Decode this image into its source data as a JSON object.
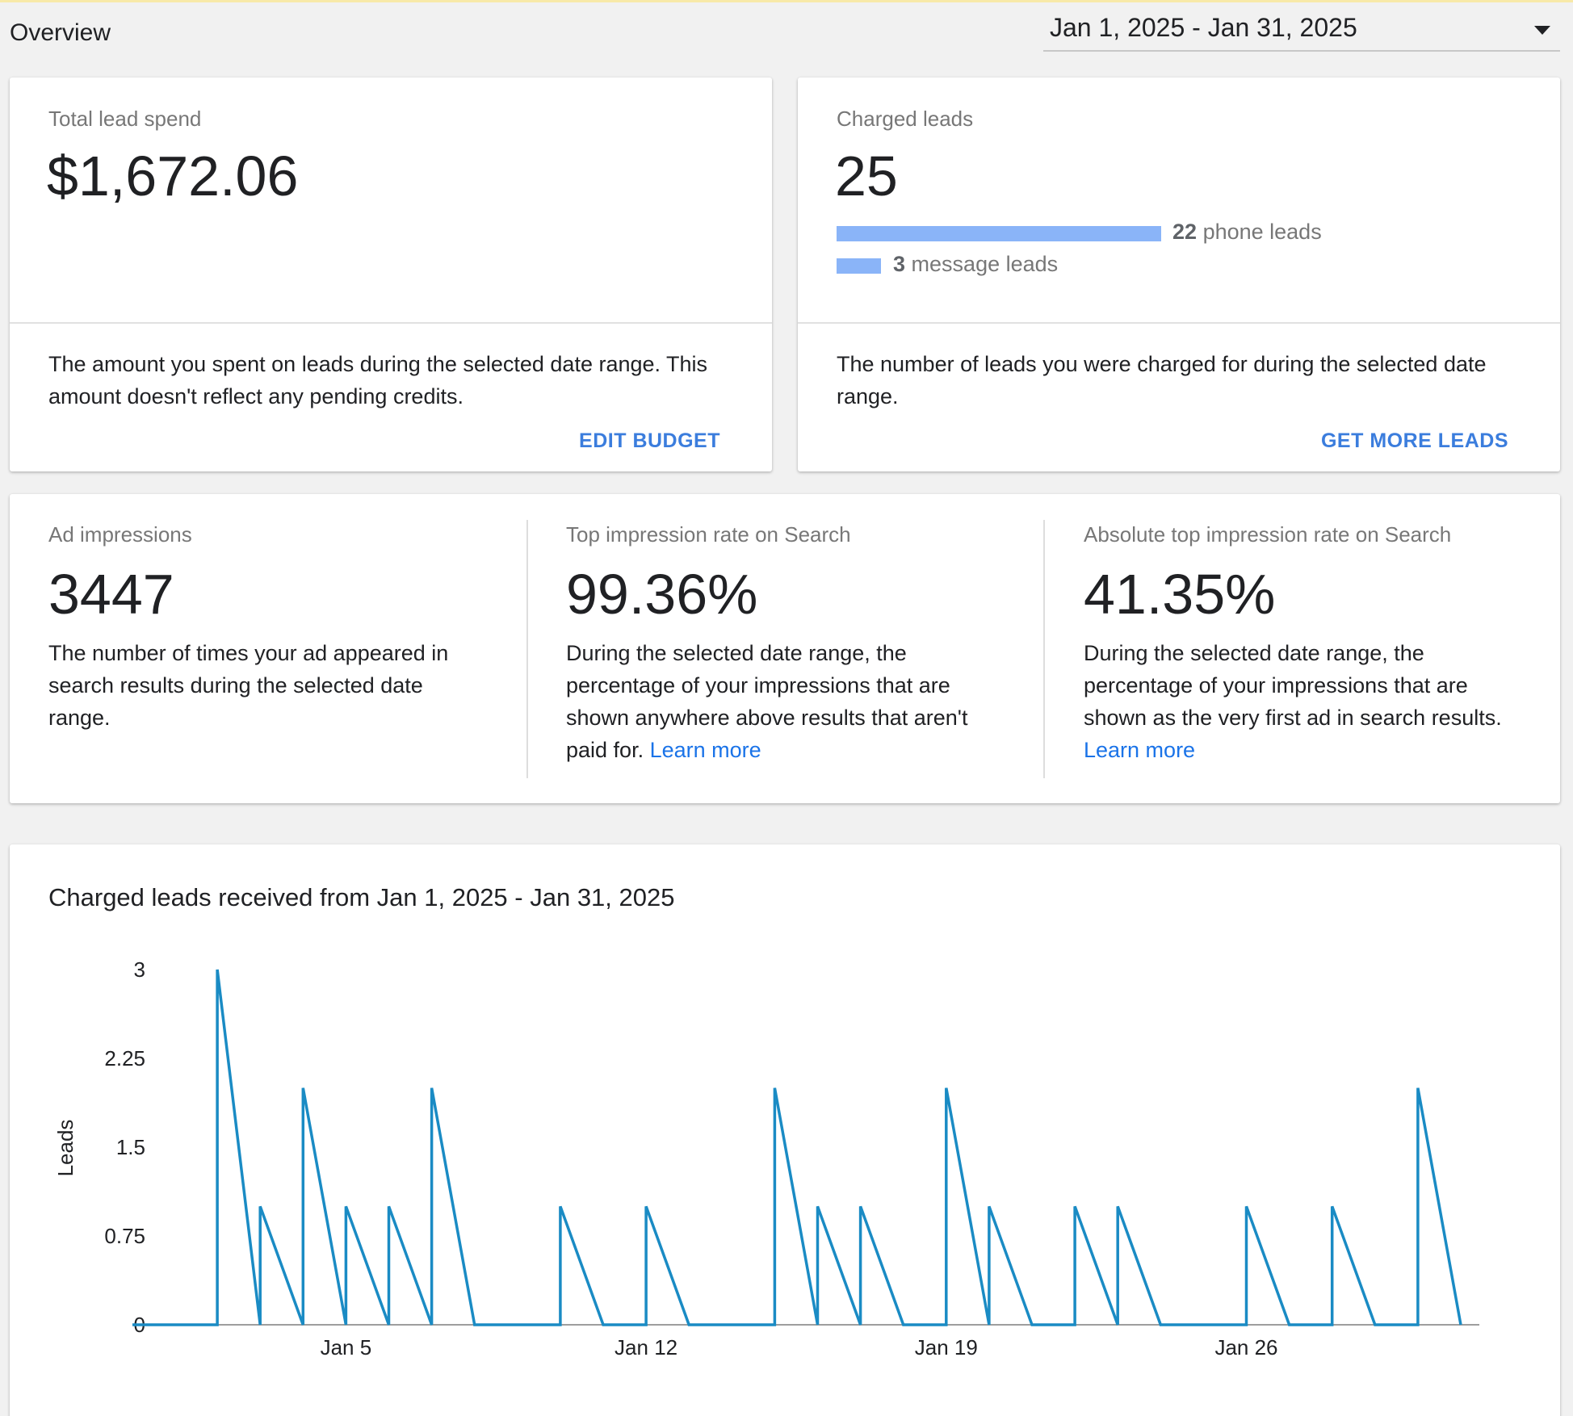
{
  "header": {
    "title": "Overview",
    "date_range": "Jan 1, 2025 - Jan 31, 2025"
  },
  "spend_card": {
    "label": "Total lead spend",
    "value": "$1,672.06",
    "description": "The amount you spent on leads during the selected date range. This amount doesn't reflect any pending credits.",
    "action": "EDIT BUDGET"
  },
  "leads_card": {
    "label": "Charged leads",
    "value": "25",
    "phone_count": "22",
    "phone_label": "phone leads",
    "message_count": "3",
    "message_label": "message leads",
    "bar_color": "#8ab4f8",
    "description": "The number of leads you were charged for during the selected date range.",
    "action": "GET MORE LEADS"
  },
  "metrics": [
    {
      "label": "Ad impressions",
      "value": "3447",
      "description": "The number of times your ad appeared in search results during the selected date range.",
      "link": ""
    },
    {
      "label": "Top impression rate on Search",
      "value": "99.36%",
      "description": "During the selected date range, the percentage of your impressions that are shown anywhere above results that aren't paid for.",
      "link": "Learn more"
    },
    {
      "label": "Absolute top impression rate on Search",
      "value": "41.35%",
      "description": "During the selected date range, the percentage of your impressions that are shown as the very first ad in search results.",
      "link": "Learn more"
    }
  ],
  "colors": {
    "accent": "#3b7ddd",
    "link": "#1a73e8",
    "series": "#1a8bc4"
  },
  "chart_data": {
    "type": "line",
    "title": "Charged leads received from Jan 1, 2025 - Jan 31, 2025",
    "xlabel": "",
    "ylabel": "Leads",
    "ylim": [
      0,
      3
    ],
    "yticks": [
      "3",
      "2.25",
      "1.5",
      "0.75",
      "0"
    ],
    "xticks": [
      "Jan 5",
      "Jan 12",
      "Jan 19",
      "Jan 26"
    ],
    "grid": false,
    "series": [
      {
        "x": [
          "Jan 1",
          "Jan 2",
          "Jan 3",
          "Jan 4",
          "Jan 5",
          "Jan 6",
          "Jan 7",
          "Jan 8",
          "Jan 9",
          "Jan 10",
          "Jan 11",
          "Jan 12",
          "Jan 13",
          "Jan 14",
          "Jan 15",
          "Jan 16",
          "Jan 17",
          "Jan 18",
          "Jan 19",
          "Jan 20",
          "Jan 21",
          "Jan 22",
          "Jan 23",
          "Jan 24",
          "Jan 25",
          "Jan 26",
          "Jan 27",
          "Jan 28",
          "Jan 29",
          "Jan 30",
          "Jan 31"
        ],
        "values": [
          0,
          3,
          1,
          2,
          1,
          1,
          2,
          0,
          0,
          1,
          0,
          1,
          0,
          0,
          2,
          1,
          1,
          0,
          2,
          1,
          0,
          1,
          1,
          0,
          0,
          1,
          0,
          1,
          0,
          2,
          0
        ]
      }
    ]
  }
}
